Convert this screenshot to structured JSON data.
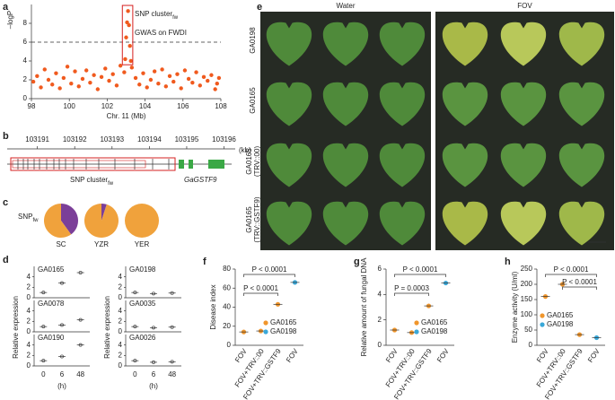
{
  "chart_data": [
    {
      "label": "a",
      "type": "scatter",
      "ylabel": "–logP",
      "xlabel": "Chr. 11 (Mb)",
      "color": "#f05a1e",
      "xlim": [
        98,
        108
      ],
      "ylim": [
        0,
        10
      ],
      "xticks": [
        98,
        100,
        102,
        104,
        106,
        108
      ],
      "yticks": [
        0,
        2,
        4,
        6,
        8
      ],
      "threshold": 6,
      "threshold_label": "GWAS on FWDI",
      "cluster_label": "SNP cluster",
      "cluster_sub": "fw",
      "x": [
        98.1,
        98.3,
        98.5,
        98.7,
        98.9,
        99.1,
        99.3,
        99.5,
        99.7,
        99.9,
        100.1,
        100.3,
        100.5,
        100.7,
        100.9,
        101.1,
        101.3,
        101.5,
        101.7,
        101.9,
        102.1,
        102.3,
        102.5,
        102.7,
        102.9,
        103.3,
        103.5,
        103.7,
        103.9,
        104.1,
        104.3,
        104.5,
        104.7,
        104.9,
        105.1,
        105.3,
        105.5,
        105.7,
        105.9,
        106.1,
        106.3,
        106.5,
        106.7,
        106.9,
        107.1,
        107.3,
        107.5,
        107.7,
        107.9,
        107.8,
        102.95,
        103.0,
        103.05,
        103.1,
        103.15,
        103.2,
        103.25
      ],
      "y": [
        1.8,
        2.4,
        1.2,
        3.1,
        2.0,
        1.5,
        2.7,
        1.1,
        2.2,
        3.4,
        1.6,
        2.9,
        1.3,
        2.1,
        3.0,
        1.7,
        2.5,
        1.0,
        2.3,
        3.2,
        1.9,
        2.6,
        1.4,
        3.5,
        2.8,
        3.3,
        2.2,
        1.5,
        2.7,
        1.2,
        2.0,
        2.9,
        1.6,
        3.1,
        1.3,
        2.4,
        1.8,
        2.6,
        1.1,
        3.0,
        2.1,
        1.7,
        2.8,
        1.4,
        2.3,
        1.9,
        2.5,
        1.0,
        2.2,
        1.6,
        4.2,
        6.5,
        8.1,
        9.3,
        7.8,
        5.6,
        4.0
      ]
    },
    {
      "label": "b",
      "type": "track",
      "xlim": [
        103190.6,
        103196.3
      ],
      "xticks": [
        103191,
        103192,
        103193,
        103194,
        103195,
        103196
      ],
      "unit": "(kb)",
      "cluster_label": "SNP cluster",
      "cluster_sub": "fw",
      "gene": "GaGSTF9"
    },
    {
      "label": "c",
      "type": "pie",
      "legend_label": "SNP",
      "legend_sub": "fw",
      "categories": [
        "SC",
        "YZR",
        "YER"
      ],
      "series": [
        {
          "color": "#7b3f98",
          "values": [
            40,
            5,
            0
          ]
        },
        {
          "color": "#f0a23c",
          "values": [
            60,
            95,
            100
          ]
        }
      ]
    },
    {
      "label": "d",
      "type": "strip",
      "ylabel": "Relative expression",
      "xlabel": "(h)",
      "categories": [
        "0",
        "6",
        "48"
      ],
      "ylim": [
        0,
        6
      ],
      "yticks": [
        0,
        2,
        4
      ],
      "color": "#555555",
      "series": [
        {
          "name": "GA0165",
          "values": [
            1,
            2.8,
            4.8
          ]
        },
        {
          "name": "GA0078",
          "values": [
            1,
            1.3,
            2.3
          ]
        },
        {
          "name": "GA0190",
          "values": [
            1,
            1.8,
            4.0
          ]
        },
        {
          "name": "GA0198",
          "values": [
            1,
            0.8,
            0.9
          ]
        },
        {
          "name": "GA0035",
          "values": [
            1,
            0.8,
            0.9
          ]
        },
        {
          "name": "GA0026",
          "values": [
            1,
            0.7,
            0.8
          ]
        }
      ]
    },
    {
      "label": "f",
      "type": "dot",
      "ylabel": "Disease index",
      "categories": [
        "FOV",
        "FOV+TRV::00",
        "FOV+TRV::GSTF9",
        "FOV"
      ],
      "ylim": [
        0,
        80
      ],
      "yticks": [
        0,
        20,
        40,
        60,
        80
      ],
      "annotations": [
        "P < 0.0001",
        "P < 0.0001"
      ],
      "series": [
        {
          "name": "GA0165",
          "color": "#f0962c",
          "values": [
            14,
            15,
            43,
            null
          ]
        },
        {
          "name": "GA0198",
          "color": "#3aa8d8",
          "values": [
            null,
            null,
            null,
            66
          ]
        }
      ]
    },
    {
      "label": "g",
      "type": "dot",
      "ylabel": "Relative amount of fungal DNA",
      "categories": [
        "FOV",
        "FOV+TRV::00",
        "FOV+TRV::GSTF9",
        "FOV"
      ],
      "ylim": [
        0,
        6
      ],
      "yticks": [
        0,
        2,
        4,
        6
      ],
      "annotations": [
        "P < 0.0001",
        "P = 0.0003"
      ],
      "series": [
        {
          "name": "GA0165",
          "color": "#f0962c",
          "values": [
            1.2,
            1.0,
            3.1,
            null
          ]
        },
        {
          "name": "GA0198",
          "color": "#3aa8d8",
          "values": [
            null,
            null,
            null,
            4.9
          ]
        }
      ]
    },
    {
      "label": "h",
      "type": "dot",
      "ylabel": "Enzyme activity (U/ml)",
      "categories": [
        "FOV",
        "FOV+TRV::00",
        "FOV+TRV::GSTF9",
        "FOV"
      ],
      "ylim": [
        0,
        250
      ],
      "yticks": [
        0,
        50,
        100,
        150,
        200,
        250
      ],
      "annotations": [
        "P < 0.0001",
        "P < 0.0001"
      ],
      "series": [
        {
          "name": "GA0165",
          "color": "#f0962c",
          "values": [
            160,
            200,
            35,
            null
          ]
        },
        {
          "name": "GA0198",
          "color": "#3aa8d8",
          "values": [
            null,
            null,
            null,
            25
          ]
        }
      ]
    }
  ],
  "photo_panel": {
    "label": "e",
    "columns": [
      "Water",
      "FOV"
    ],
    "rows": [
      [
        "GA0198"
      ],
      [
        "GA0165"
      ],
      [
        "GA0165",
        "(TRV::00)"
      ],
      [
        "GA0165",
        "(TRV::GSTF9)"
      ]
    ]
  }
}
